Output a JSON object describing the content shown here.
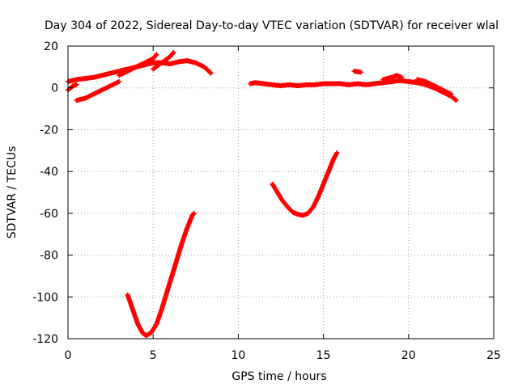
{
  "chart_data": {
    "type": "scatter",
    "title": "Day 304 of 2022, Sidereal Day-to-day VTEC variation (SDTVAR) for receiver wlal",
    "xlabel": "GPS time / hours",
    "ylabel": "SDTVAR / TECUs",
    "xlim": [
      0,
      25
    ],
    "ylim": [
      -120,
      20
    ],
    "xticks": [
      0,
      5,
      10,
      15,
      20,
      25
    ],
    "yticks": [
      20,
      0,
      -20,
      -40,
      -60,
      -80,
      -100,
      -120
    ],
    "xtick_labels": [
      "0",
      "5",
      "10",
      "15",
      "20",
      "25"
    ],
    "ytick_labels": [
      "20",
      "0",
      "-20",
      "-40",
      "-60",
      "-80",
      "-100",
      "-120"
    ],
    "grid": true,
    "marker": "plus",
    "color": "#ff0000",
    "series": [
      {
        "values": [
          [
            0.0,
            3
          ],
          [
            0.5,
            4
          ],
          [
            1.0,
            4.5
          ],
          [
            1.5,
            5
          ],
          [
            2.0,
            6
          ],
          [
            2.5,
            7
          ],
          [
            3.0,
            8
          ],
          [
            3.5,
            9
          ],
          [
            4.0,
            10
          ],
          [
            4.5,
            11
          ],
          [
            5.0,
            12
          ],
          [
            5.5,
            12
          ],
          [
            6.0,
            11.5
          ],
          [
            6.5,
            12.5
          ],
          [
            7.0,
            13
          ],
          [
            7.5,
            12
          ],
          [
            8.0,
            10
          ],
          [
            8.4,
            7
          ]
        ]
      },
      {
        "values": [
          [
            0.0,
            -1
          ],
          [
            0.3,
            1
          ],
          [
            0.5,
            1.5
          ]
        ]
      },
      {
        "values": [
          [
            0.5,
            -6
          ],
          [
            1.0,
            -5
          ],
          [
            1.5,
            -3
          ],
          [
            2.0,
            -1
          ],
          [
            2.5,
            1
          ],
          [
            3.0,
            3
          ]
        ]
      },
      {
        "values": [
          [
            3.0,
            6
          ],
          [
            3.5,
            8
          ],
          [
            4.0,
            10
          ],
          [
            4.5,
            12
          ],
          [
            5.0,
            14
          ],
          [
            5.2,
            16
          ]
        ]
      },
      {
        "values": [
          [
            5.0,
            9
          ],
          [
            5.5,
            12
          ],
          [
            6.0,
            15
          ],
          [
            6.2,
            17
          ]
        ]
      },
      {
        "values": [
          [
            10.7,
            2
          ],
          [
            11.0,
            2.5
          ],
          [
            11.5,
            2
          ],
          [
            12.0,
            1.5
          ],
          [
            12.5,
            1
          ],
          [
            13.0,
            1.5
          ],
          [
            13.5,
            1
          ],
          [
            14.0,
            1.5
          ],
          [
            14.5,
            1.5
          ],
          [
            15.0,
            2
          ],
          [
            15.5,
            2
          ],
          [
            16.0,
            2
          ],
          [
            16.5,
            1.5
          ],
          [
            17.0,
            2
          ],
          [
            17.5,
            1.5
          ],
          [
            18.0,
            2
          ],
          [
            18.5,
            2.5
          ],
          [
            19.0,
            3
          ],
          [
            19.5,
            3.5
          ],
          [
            20.0,
            3
          ],
          [
            20.5,
            2.5
          ],
          [
            21.0,
            1.5
          ],
          [
            21.5,
            0
          ],
          [
            22.0,
            -2
          ],
          [
            22.5,
            -4
          ],
          [
            22.8,
            -6
          ]
        ]
      },
      {
        "values": [
          [
            16.8,
            8
          ],
          [
            17.2,
            7.5
          ]
        ]
      },
      {
        "values": [
          [
            18.5,
            4
          ],
          [
            19.0,
            5
          ],
          [
            19.3,
            6
          ],
          [
            19.6,
            5
          ]
        ]
      },
      {
        "values": [
          [
            20.5,
            4
          ],
          [
            21.0,
            3
          ],
          [
            21.5,
            1
          ],
          [
            22.0,
            -1
          ],
          [
            22.5,
            -3
          ]
        ]
      },
      {
        "values": [
          [
            3.5,
            -99
          ],
          [
            3.8,
            -106
          ],
          [
            4.1,
            -113
          ],
          [
            4.4,
            -117.5
          ],
          [
            4.6,
            -118.5
          ],
          [
            4.9,
            -117
          ],
          [
            5.2,
            -113
          ],
          [
            5.5,
            -106
          ],
          [
            5.8,
            -98
          ],
          [
            6.1,
            -90
          ],
          [
            6.4,
            -82
          ],
          [
            6.7,
            -74
          ],
          [
            7.0,
            -67
          ],
          [
            7.3,
            -61
          ],
          [
            7.4,
            -60
          ]
        ]
      },
      {
        "values": [
          [
            12.0,
            -46
          ],
          [
            12.3,
            -50
          ],
          [
            12.6,
            -54
          ],
          [
            12.9,
            -57
          ],
          [
            13.2,
            -59.5
          ],
          [
            13.5,
            -60.5
          ],
          [
            13.8,
            -61
          ],
          [
            14.1,
            -60
          ],
          [
            14.4,
            -57
          ],
          [
            14.7,
            -52
          ],
          [
            15.0,
            -46
          ],
          [
            15.3,
            -40
          ],
          [
            15.6,
            -34
          ],
          [
            15.8,
            -31
          ]
        ]
      }
    ]
  }
}
